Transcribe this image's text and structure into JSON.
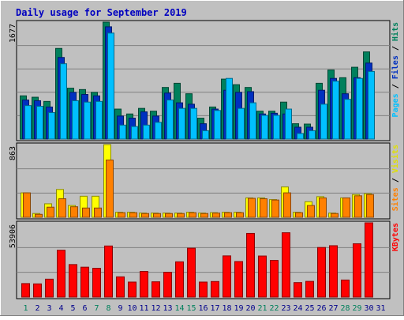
{
  "chart_data": {
    "type": "bar",
    "title": "Daily usage for September 2019",
    "categories": [
      "1",
      "2",
      "3",
      "4",
      "5",
      "6",
      "7",
      "8",
      "9",
      "10",
      "11",
      "12",
      "13",
      "14",
      "15",
      "16",
      "17",
      "18",
      "19",
      "20",
      "21",
      "22",
      "23",
      "24",
      "25",
      "26",
      "27",
      "28",
      "29",
      "30",
      "31"
    ],
    "weekend_days": [
      "1",
      "7",
      "8",
      "14",
      "15",
      "21",
      "22",
      "28",
      "29"
    ],
    "weekend_color": "#00805c",
    "weekday_color": "#00008b",
    "panels": [
      {
        "id": "hits-files-pages",
        "max_label": "1677",
        "ymax": 1677,
        "side_labels": [
          {
            "text": "Pages",
            "color": "#00c0ff"
          },
          {
            "text": " / ",
            "color": "#000000"
          },
          {
            "text": "Files",
            "color": "#0030c0"
          },
          {
            "text": " / ",
            "color": "#000000"
          },
          {
            "text": "Hits",
            "color": "#00805c"
          }
        ],
        "series": [
          {
            "name": "Hits",
            "color": "#00805c",
            "values": [
              620,
              600,
              540,
              1300,
              730,
              710,
              670,
              1677,
              430,
              360,
              440,
              400,
              740,
              800,
              650,
              300,
              460,
              860,
              780,
              740,
              400,
              400,
              530,
              220,
              215,
              800,
              990,
              880,
              1030,
              1250,
              0
            ]
          },
          {
            "name": "Files",
            "color": "#0030c0",
            "values": [
              560,
              550,
              460,
              1170,
              670,
              640,
              620,
              1610,
              330,
              300,
              390,
              330,
              660,
              520,
              500,
              220,
              430,
              700,
              670,
              680,
              360,
              370,
              360,
              170,
              170,
              700,
              870,
              650,
              880,
              1090,
              0
            ]
          },
          {
            "name": "Pages",
            "color": "#00c0ff",
            "values": [
              480,
              470,
              380,
              1080,
              550,
              530,
              540,
              1520,
              200,
              180,
              200,
              240,
              560,
              440,
              440,
              120,
              410,
              870,
              440,
              520,
              340,
              340,
              430,
              80,
              120,
              500,
              830,
              570,
              870,
              970,
              0
            ]
          }
        ]
      },
      {
        "id": "visits-sites",
        "max_label": "863",
        "ymax": 863,
        "side_labels": [
          {
            "text": "Sites",
            "color": "#ff8000"
          },
          {
            "text": " / ",
            "color": "#000000"
          },
          {
            "text": "Visits",
            "color": "#e0e000"
          }
        ],
        "series": [
          {
            "name": "Visits",
            "color": "#ffff00",
            "values": [
              290,
              45,
              160,
              330,
              140,
              250,
              250,
              863,
              60,
              60,
              50,
              50,
              50,
              50,
              60,
              50,
              55,
              60,
              60,
              230,
              230,
              210,
              360,
              60,
              185,
              245,
              50,
              230,
              270,
              280,
              0
            ]
          },
          {
            "name": "Sites",
            "color": "#ff8000",
            "values": [
              290,
              35,
              120,
              220,
              125,
              110,
              110,
              680,
              55,
              55,
              45,
              45,
              45,
              45,
              55,
              45,
              50,
              55,
              55,
              225,
              220,
              205,
              290,
              55,
              140,
              230,
              45,
              230,
              255,
              270,
              0
            ]
          }
        ]
      },
      {
        "id": "kbytes",
        "max_label": "53906",
        "ymax": 53906,
        "side_labels": [
          {
            "text": "KBytes",
            "color": "#ff0000"
          }
        ],
        "series": [
          {
            "name": "KBytes",
            "color": "#ff0000",
            "values": [
              9800,
              9600,
              13000,
              34000,
              23600,
              21700,
              20900,
              37100,
              14700,
              10900,
              18600,
              11100,
              18000,
              25600,
              35500,
              10900,
              11300,
              29900,
              25800,
              46200,
              29800,
              26600,
              46700,
              10500,
              11400,
              36000,
              37300,
              12400,
              38700,
              53906,
              0
            ]
          }
        ]
      }
    ],
    "grid": true
  }
}
